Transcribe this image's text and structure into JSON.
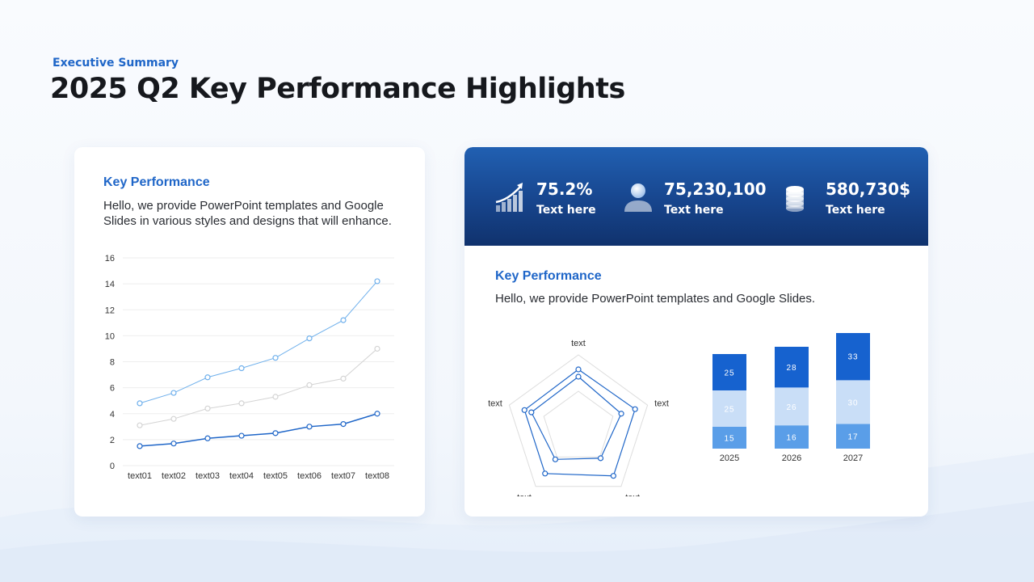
{
  "header": {
    "eyebrow": "Executive Summary",
    "title": "2025 Q2 Key Performance Highlights"
  },
  "left_card": {
    "heading": "Key Performance",
    "text_line1": "Hello, we provide PowerPoint templates and Google",
    "text_line2": "Slides in various styles and designs that will enhance."
  },
  "stats": [
    {
      "value": "75.2%",
      "label": "Text here",
      "icon": "growth-chart-icon"
    },
    {
      "value": "75,230,100",
      "label": "Text here",
      "icon": "person-icon"
    },
    {
      "value": "580,730$",
      "label": "Text here",
      "icon": "coin-stack-icon"
    }
  ],
  "right_card": {
    "heading": "Key Performance",
    "text": "Hello, we provide PowerPoint templates and Google Slides."
  },
  "colors": {
    "accent": "#1f66c8",
    "band_top": "#2160b2",
    "band_bottom": "#10326d",
    "line_light": "#6fb0ec",
    "line_gray": "#d4d4d4",
    "line_dark": "#1f66c8",
    "bar_light": "#5a9ee8",
    "bar_pale": "#c9def7",
    "bar_dark": "#1662cf"
  },
  "chart_data": [
    {
      "type": "line",
      "categories": [
        "text01",
        "text02",
        "text03",
        "text04",
        "text05",
        "text06",
        "text07",
        "text08"
      ],
      "series": [
        {
          "values": [
            4.8,
            5.6,
            6.8,
            7.5,
            8.3,
            9.8,
            11.2,
            14.2
          ]
        },
        {
          "values": [
            3.1,
            3.6,
            4.4,
            4.8,
            5.3,
            6.2,
            6.7,
            9.0
          ]
        },
        {
          "values": [
            1.5,
            1.7,
            2.1,
            2.3,
            2.5,
            3.0,
            3.2,
            4.0
          ]
        }
      ],
      "ylim": [
        0,
        16
      ],
      "yticks": [
        0,
        2,
        4,
        6,
        8,
        10,
        12,
        14,
        16
      ],
      "grid": true
    },
    {
      "type": "radar",
      "axes": [
        "text",
        "text",
        "text",
        "text",
        "text"
      ],
      "series": [
        {
          "values": [
            0.8,
            0.82,
            0.82,
            0.78,
            0.78
          ]
        },
        {
          "values": [
            0.7,
            0.62,
            0.52,
            0.54,
            0.68
          ]
        }
      ],
      "range": [
        0,
        1
      ]
    },
    {
      "type": "bar",
      "stacked": true,
      "categories": [
        "2025",
        "2026",
        "2027"
      ],
      "series": [
        {
          "values": [
            15,
            16,
            17
          ]
        },
        {
          "values": [
            25,
            26,
            30
          ]
        },
        {
          "values": [
            25,
            28,
            33
          ]
        }
      ]
    }
  ]
}
